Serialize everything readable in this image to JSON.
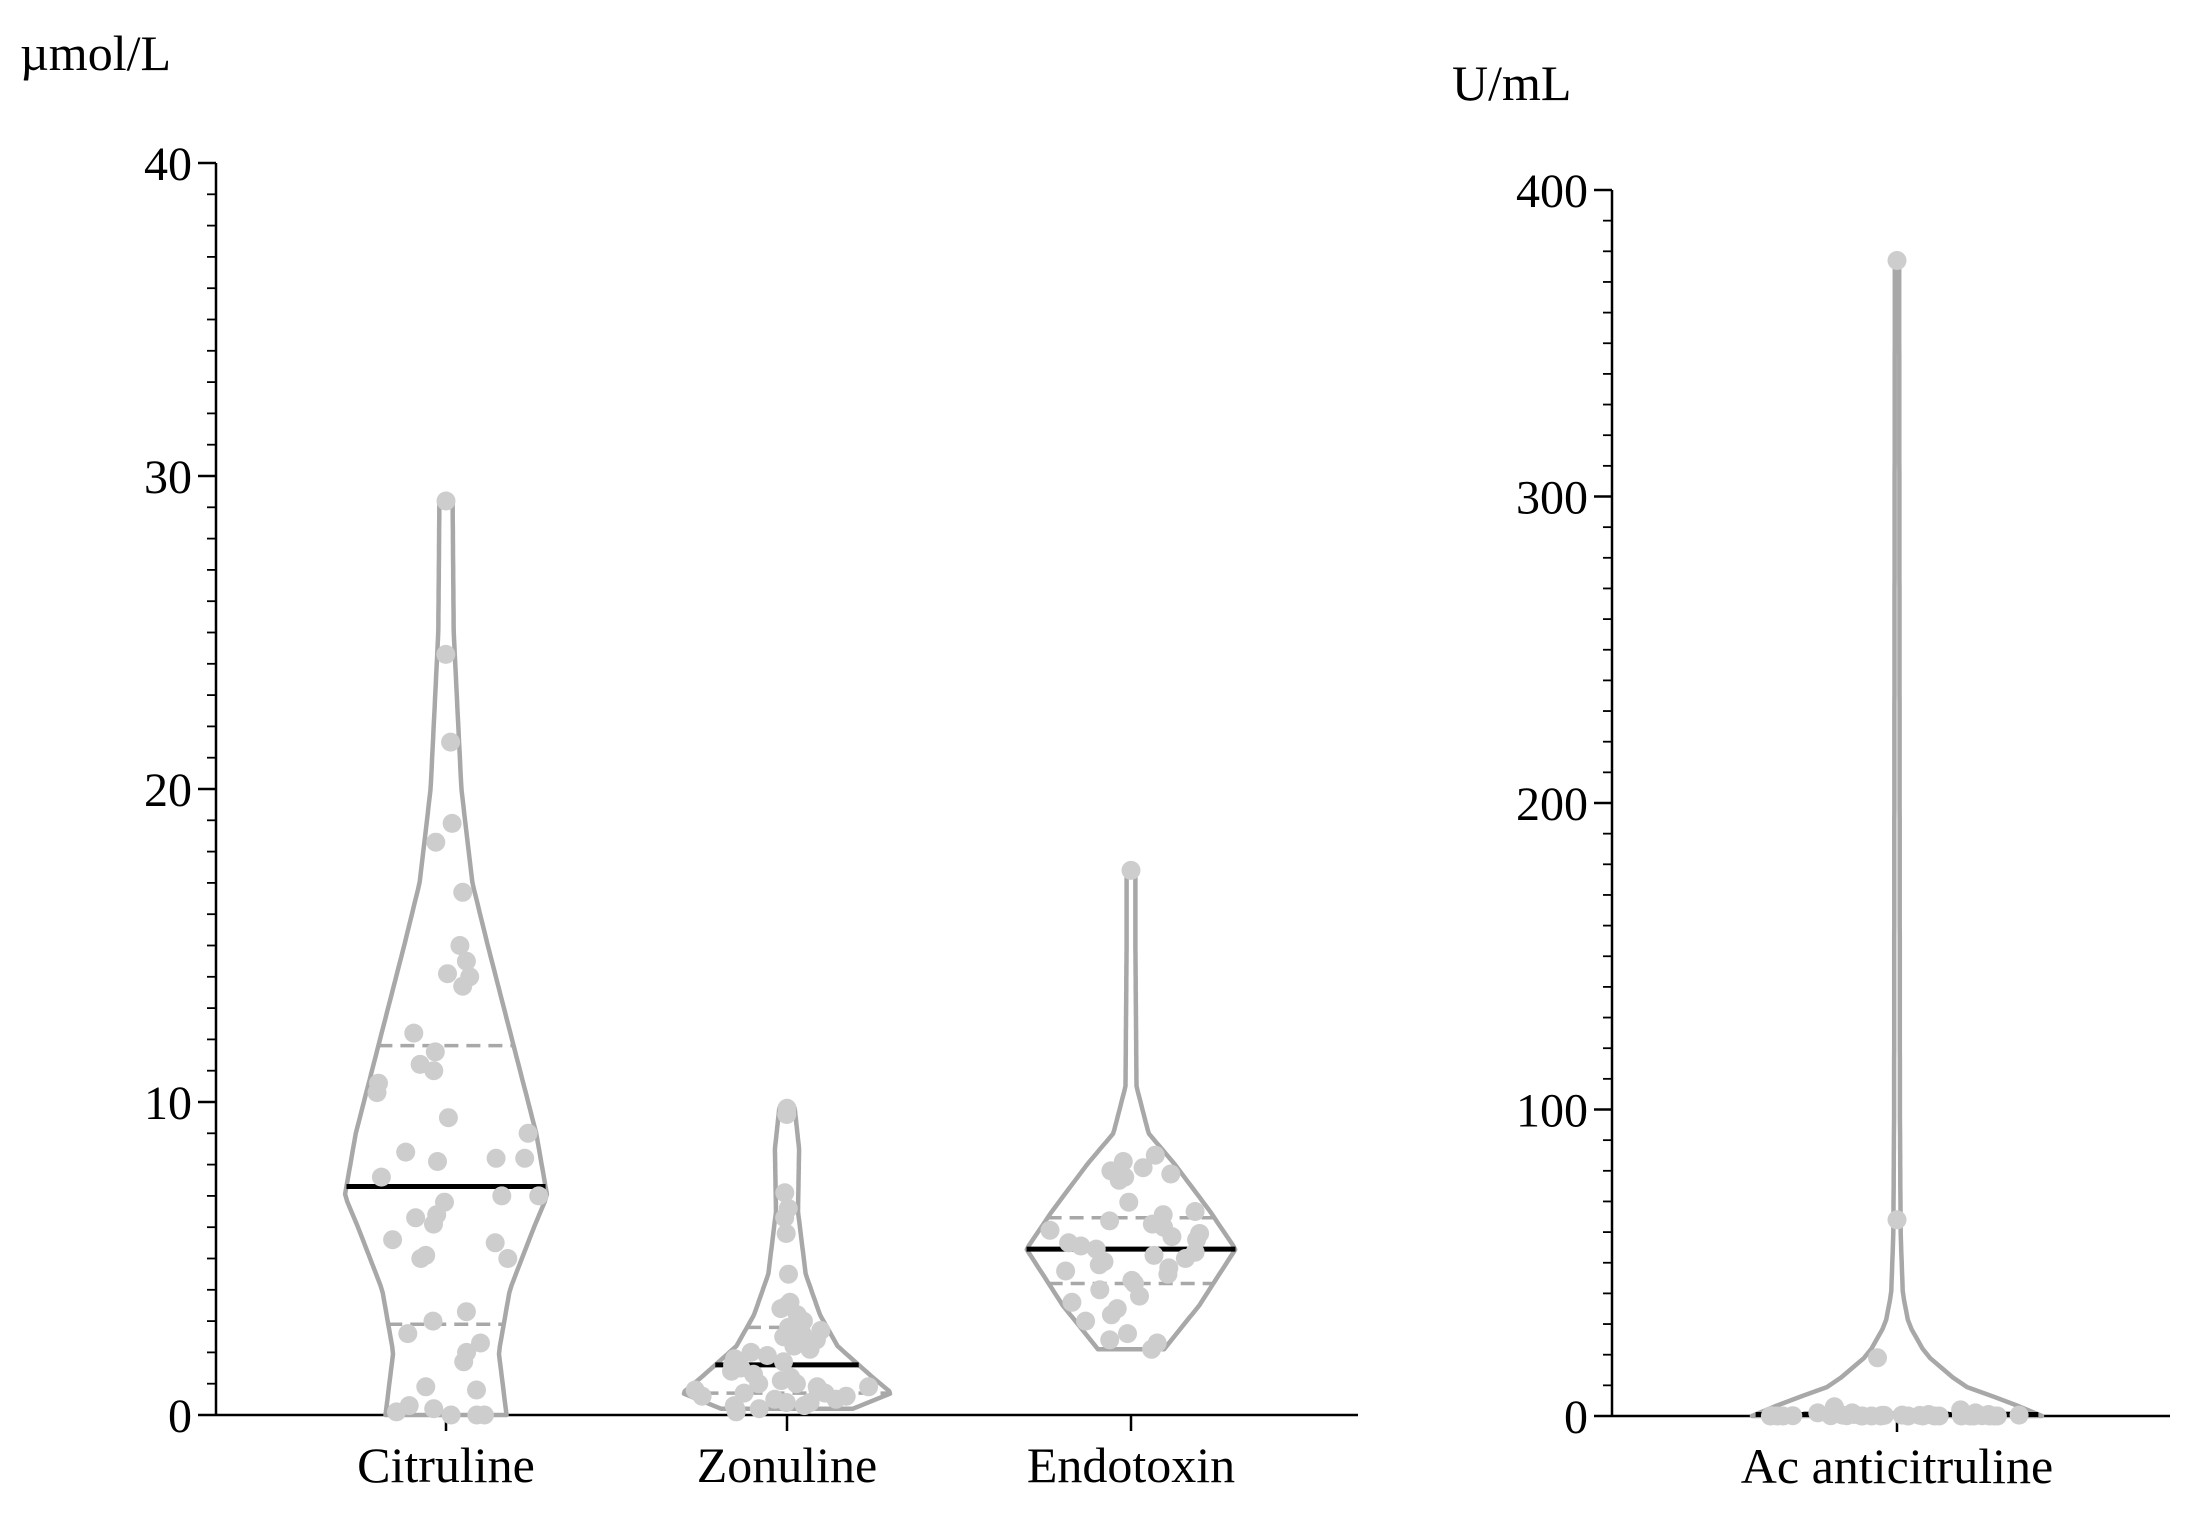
{
  "colors": {
    "violin": "#a8a8a8",
    "dot": "#cdcdcd",
    "median": "#000000",
    "quartile": "#a8a8a8",
    "axis": "#000000"
  },
  "chart_data": [
    {
      "type": "violin",
      "ylabel": "µmol/L",
      "ylim": [
        0,
        40
      ],
      "yticks": [
        0,
        10,
        20,
        30,
        40
      ],
      "yminor_step": 1,
      "categories": [
        "Citruline",
        "Zonuline",
        "Endotoxin"
      ],
      "series": [
        {
          "category": "Citruline",
          "median": 7.3,
          "q1": 2.9,
          "q3": 11.8,
          "points": [
            29.2,
            24.3,
            21.5,
            18.9,
            18.3,
            16.7,
            15.0,
            14.5,
            14.1,
            14.0,
            13.7,
            12.2,
            11.6,
            11.2,
            11.0,
            10.6,
            10.3,
            9.5,
            9.0,
            8.4,
            8.2,
            8.2,
            8.1,
            7.6,
            7.0,
            7.0,
            6.8,
            6.4,
            6.3,
            6.1,
            5.6,
            5.5,
            5.1,
            5.0,
            5.0,
            3.3,
            3.0,
            2.6,
            2.3,
            2.0,
            1.7,
            0.9,
            0.8,
            0.3,
            0.2,
            0.1,
            0.0,
            0.0,
            0.0
          ],
          "outline": {
            "min": 0.0,
            "max": 29.2,
            "width_profile": [
              [
                0,
                0.55
              ],
              [
                2,
                0.48
              ],
              [
                4,
                0.58
              ],
              [
                6,
                0.8
              ],
              [
                7,
                0.92
              ],
              [
                9,
                0.82
              ],
              [
                12,
                0.6
              ],
              [
                15,
                0.38
              ],
              [
                17,
                0.24
              ],
              [
                20,
                0.14
              ],
              [
                25,
                0.07
              ],
              [
                29.2,
                0.06
              ]
            ]
          }
        },
        {
          "category": "Zonuline",
          "median": 1.6,
          "q1": 0.7,
          "q3": 2.8,
          "points": [
            9.8,
            9.6,
            7.1,
            6.6,
            6.3,
            5.8,
            4.5,
            3.6,
            3.5,
            3.4,
            3.2,
            3.0,
            2.8,
            2.7,
            2.6,
            2.5,
            2.4,
            2.3,
            2.2,
            2.1,
            2.0,
            1.9,
            1.8,
            1.7,
            1.6,
            1.5,
            1.4,
            1.3,
            1.2,
            1.1,
            1.0,
            1.0,
            0.9,
            0.9,
            0.8,
            0.8,
            0.7,
            0.7,
            0.6,
            0.6,
            0.5,
            0.5,
            0.4,
            0.4,
            0.3,
            0.3,
            0.2,
            0.2,
            0.1
          ],
          "outline": {
            "min": 0.2,
            "max": 9.8,
            "width_profile": [
              [
                0.2,
                0.6
              ],
              [
                0.7,
                0.95
              ],
              [
                1.2,
                0.78
              ],
              [
                2.2,
                0.46
              ],
              [
                3.2,
                0.3
              ],
              [
                4.5,
                0.17
              ],
              [
                6.5,
                0.1
              ],
              [
                8.5,
                0.11
              ],
              [
                9.8,
                0.07
              ]
            ]
          }
        },
        {
          "category": "Endotoxin",
          "median": 5.3,
          "q1": 4.2,
          "q3": 6.3,
          "points": [
            17.4,
            8.3,
            8.1,
            7.9,
            7.8,
            7.7,
            7.6,
            7.5,
            6.8,
            6.5,
            6.4,
            6.2,
            6.1,
            6.0,
            5.9,
            5.8,
            5.7,
            5.6,
            5.5,
            5.4,
            5.3,
            5.2,
            5.1,
            5.0,
            4.9,
            4.8,
            4.7,
            4.6,
            4.5,
            4.3,
            4.2,
            4.0,
            3.8,
            3.6,
            3.4,
            3.2,
            3.0,
            2.6,
            2.4,
            2.3,
            2.1
          ],
          "outline": {
            "min": 2.1,
            "max": 17.4,
            "width_profile": [
              [
                2.1,
                0.3
              ],
              [
                3.5,
                0.62
              ],
              [
                5.3,
                0.95
              ],
              [
                6.5,
                0.72
              ],
              [
                8.0,
                0.4
              ],
              [
                9.0,
                0.16
              ],
              [
                10.5,
                0.05
              ],
              [
                15,
                0.04
              ],
              [
                17.4,
                0.04
              ]
            ]
          }
        }
      ]
    },
    {
      "type": "violin",
      "ylabel": "U/mL",
      "ylim": [
        0,
        400
      ],
      "yticks": [
        0,
        100,
        200,
        300,
        400
      ],
      "yminor_step": 10,
      "categories": [
        "Ac anticitruline"
      ],
      "series": [
        {
          "category": "Ac anticitruline",
          "median": 0.5,
          "q1": 0.2,
          "q3": 1.0,
          "points": [
            377,
            64,
            19,
            3,
            2,
            1,
            1,
            1,
            0.5,
            0.5,
            0.5,
            0.3,
            0.3,
            0.3,
            0.2,
            0.2,
            0.2,
            0.1,
            0.1,
            0.1,
            0.1,
            0.1,
            0.1,
            0.0,
            0.0,
            0.0,
            0.0,
            0.0,
            0.0,
            0.0,
            0.0,
            0.0,
            0.0,
            0.0,
            0.0,
            0.0,
            0.0,
            0.0,
            0.0,
            0.0
          ],
          "outline": {
            "min": 0.0,
            "max": 377,
            "width_profile": [
              [
                0,
                1.0
              ],
              [
                4,
                0.8
              ],
              [
                10,
                0.45
              ],
              [
                20,
                0.2
              ],
              [
                30,
                0.08
              ],
              [
                40,
                0.04
              ],
              [
                60,
                0.025
              ],
              [
                100,
                0.02
              ],
              [
                377,
                0.015
              ]
            ]
          }
        }
      ]
    }
  ]
}
